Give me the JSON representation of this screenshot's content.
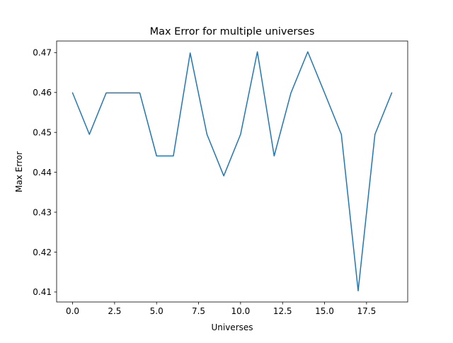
{
  "chart_data": {
    "type": "line",
    "title": "Max Error for multiple universes",
    "xlabel": "Universes",
    "ylabel": "Max Error",
    "xlim": [
      -0.95,
      19.95
    ],
    "ylim": [
      0.4075,
      0.4729
    ],
    "xticks": [
      0.0,
      2.5,
      5.0,
      7.5,
      10.0,
      12.5,
      15.0,
      17.5
    ],
    "xtick_labels": [
      "0.0",
      "2.5",
      "5.0",
      "7.5",
      "10.0",
      "12.5",
      "15.0",
      "17.5"
    ],
    "yticks": [
      0.41,
      0.42,
      0.43,
      0.44,
      0.45,
      0.46,
      0.47
    ],
    "ytick_labels": [
      "0.41",
      "0.42",
      "0.43",
      "0.44",
      "0.45",
      "0.46",
      "0.47"
    ],
    "grid": false,
    "legend": "none",
    "series": [
      {
        "color": "#1f77b4",
        "x": [
          0,
          1,
          2,
          3,
          4,
          5,
          6,
          7,
          8,
          9,
          10,
          11,
          12,
          13,
          14,
          15,
          16,
          17,
          18,
          19
        ],
        "y": [
          0.4599,
          0.4495,
          0.4599,
          0.4599,
          0.4599,
          0.4441,
          0.4441,
          0.4699,
          0.4495,
          0.4391,
          0.4495,
          0.4702,
          0.4441,
          0.4599,
          0.4702,
          0.4599,
          0.4495,
          0.4103,
          0.4495,
          0.4599
        ]
      }
    ]
  }
}
